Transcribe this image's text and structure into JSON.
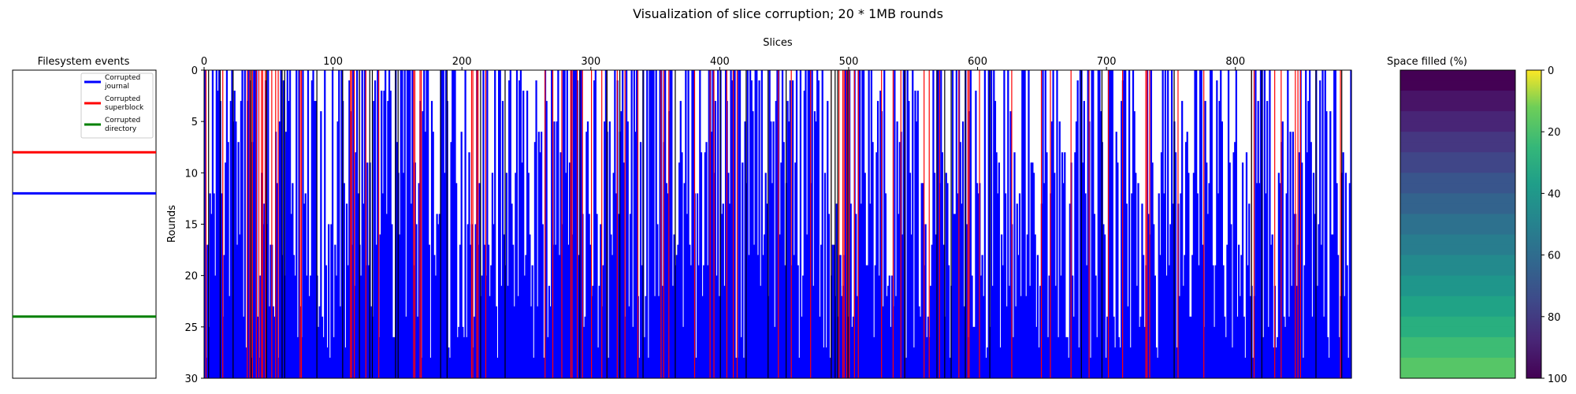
{
  "title": "Visualization of slice corruption; 20 * 1MB rounds",
  "colors": {
    "journal": "#0000ff",
    "superblock": "#ff0000",
    "directory": "#008000",
    "black": "#000000"
  },
  "chart_data": [
    {
      "type": "line",
      "panel": "events",
      "title": "Filesystem events",
      "ylim": [
        30,
        0
      ],
      "grid": false,
      "legend": {
        "placement": "top-right"
      },
      "series": [
        {
          "name": "Corrupted journal",
          "color": "#0000ff",
          "y": 12
        },
        {
          "name": "Corrupted superblock",
          "color": "#ff0000",
          "y": 8
        },
        {
          "name": "Corrupted directory",
          "color": "#008000",
          "y": 24
        }
      ]
    },
    {
      "type": "bar",
      "panel": "slices",
      "title": "",
      "xlabel": "Slices",
      "ylabel": "Rounds",
      "xlim": [
        0,
        890
      ],
      "ylim": [
        30,
        0
      ],
      "x_ticks": [
        0,
        100,
        200,
        300,
        400,
        500,
        600,
        700,
        800
      ],
      "y_ticks": [
        0,
        5,
        10,
        15,
        20,
        25,
        30
      ],
      "num_slices": 890,
      "description_of_marks": "Each slice is a vertical bar extending from the bottom (round 30) up to the first round in which that slice was found corrupted; many slices are corrupted across all rounds.",
      "full_height_red_slices": [
        1,
        14,
        33,
        35,
        37,
        40,
        42,
        44,
        45,
        47,
        52,
        55,
        57,
        74,
        75,
        113,
        114,
        116,
        120,
        125,
        135,
        162,
        163,
        167,
        168,
        207,
        208,
        211,
        212,
        218,
        264,
        270,
        277,
        284,
        285,
        289,
        293,
        300,
        308,
        312,
        320,
        326,
        336,
        354,
        356,
        360,
        380,
        392,
        395,
        405,
        410,
        413,
        445,
        455,
        470,
        486,
        492,
        495,
        496,
        498,
        500,
        504,
        507,
        525,
        534,
        540,
        543,
        558,
        562,
        570,
        585,
        592,
        593,
        601,
        626,
        649,
        656,
        672,
        686,
        701,
        712,
        730,
        731,
        733,
        755,
        775,
        812,
        814,
        830,
        835,
        846,
        848,
        850,
        881
      ],
      "full_height_black_slices": [
        3,
        12,
        22,
        36,
        48,
        60,
        62,
        87,
        107,
        120,
        128,
        130,
        148,
        150,
        183,
        188,
        214,
        233,
        291,
        312,
        322,
        340,
        365,
        400,
        420,
        437,
        451,
        486,
        489,
        491,
        499,
        543,
        568,
        574,
        579,
        590,
        609,
        680,
        696,
        752,
        812,
        820,
        862,
        882
      ]
    },
    {
      "type": "heatmap",
      "panel": "space",
      "title": "Space filled (%)",
      "rows": 30,
      "values_range": [
        0,
        30
      ],
      "colorbar": {
        "ticks": [
          0,
          20,
          40,
          60,
          80,
          100
        ],
        "reversed": true,
        "colormap": "viridis"
      }
    }
  ]
}
